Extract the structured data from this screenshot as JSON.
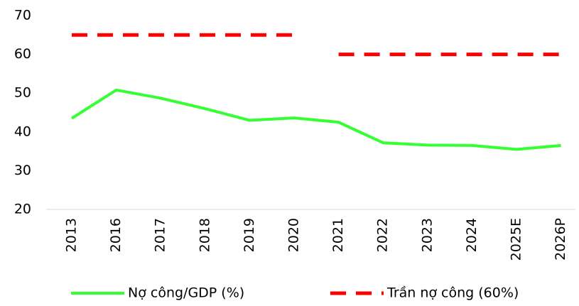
{
  "chart_data": {
    "type": "line",
    "categories": [
      "2013",
      "2016",
      "2017",
      "2018",
      "2019",
      "2020",
      "2021",
      "2022",
      "2023",
      "2024",
      "2025E",
      "2026P"
    ],
    "series": [
      {
        "name": "Nợ công/GDP (%)",
        "color": "#33ff33",
        "dash": false,
        "values": [
          43.5,
          50.8,
          48.7,
          46,
          43,
          43.6,
          42.5,
          37.2,
          36.6,
          36.5,
          35.5,
          36.5
        ]
      },
      {
        "name": "Trần nợ công (60%)",
        "color": "#ff0000",
        "dash": true,
        "values": [
          65,
          65,
          65,
          65,
          65,
          65,
          60,
          60,
          60,
          60,
          60,
          60
        ]
      }
    ],
    "ylim": [
      20,
      70
    ],
    "yticks": [
      20,
      30,
      40,
      50,
      60,
      70
    ],
    "grid": false,
    "legend": "bottom"
  }
}
